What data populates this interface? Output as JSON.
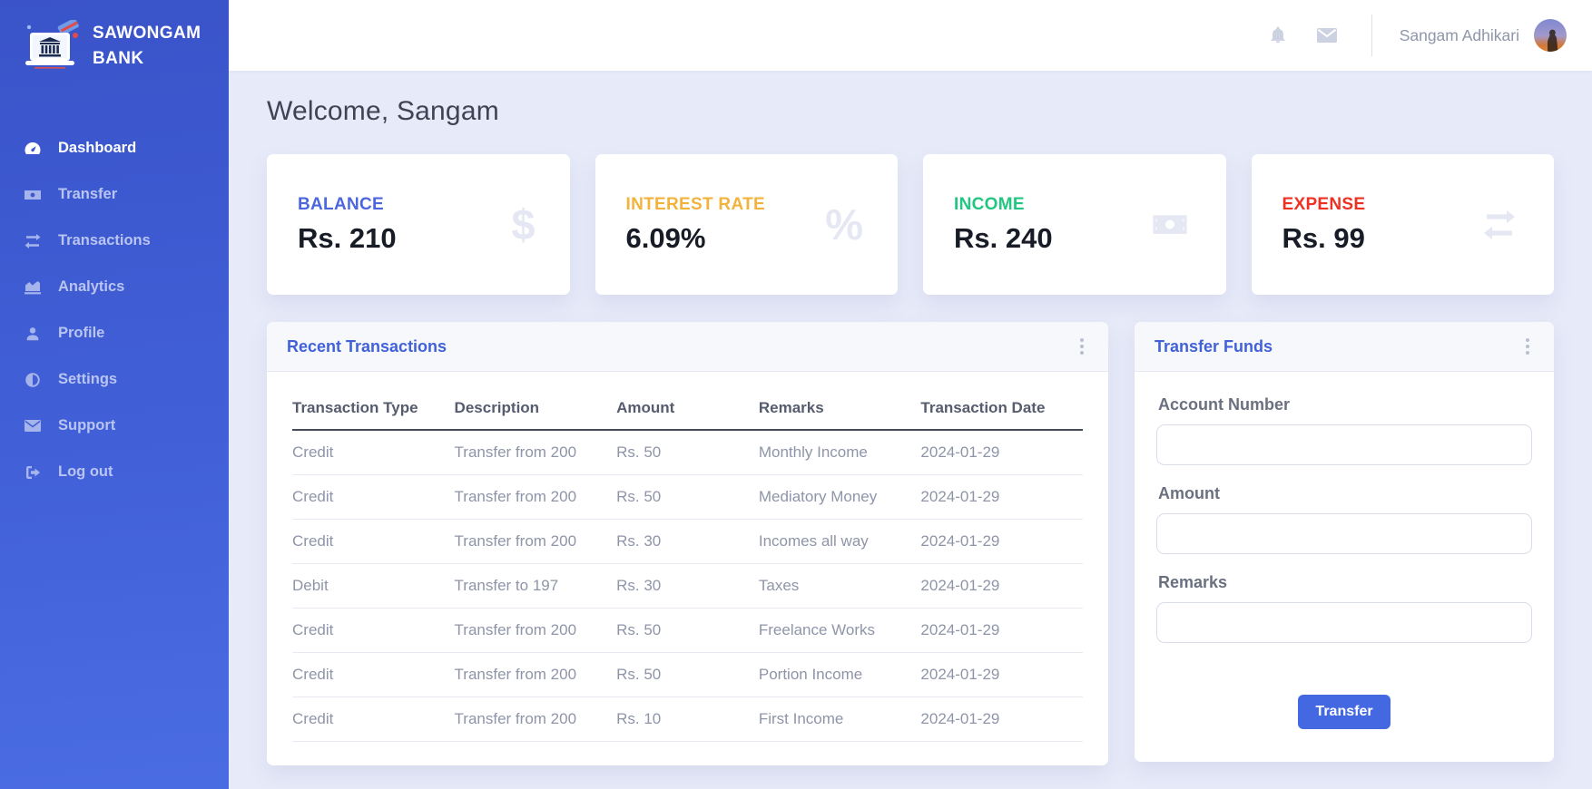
{
  "brand": {
    "line1": "SAWONGAM",
    "line2": "BANK"
  },
  "sidebar": {
    "items": [
      {
        "label": "Dashboard",
        "icon": "dashboard-icon",
        "active": true
      },
      {
        "label": "Transfer",
        "icon": "money-bill-icon",
        "active": false
      },
      {
        "label": "Transactions",
        "icon": "exchange-icon",
        "active": false
      },
      {
        "label": "Analytics",
        "icon": "chart-area-icon",
        "active": false
      },
      {
        "label": "Profile",
        "icon": "user-icon",
        "active": false
      },
      {
        "label": "Settings",
        "icon": "adjust-icon",
        "active": false
      },
      {
        "label": "Support",
        "icon": "envelope-icon",
        "active": false
      },
      {
        "label": "Log out",
        "icon": "sign-out-icon",
        "active": false
      }
    ]
  },
  "header": {
    "user_name": "Sangam Adhikari"
  },
  "main": {
    "welcome": "Welcome, Sangam",
    "stats": [
      {
        "label": "BALANCE",
        "value": "Rs. 210",
        "color": "#4c66dd",
        "icon": "dollar-icon"
      },
      {
        "label": "INTEREST RATE",
        "value": "6.09%",
        "color": "#f2b33d",
        "icon": "percent-icon"
      },
      {
        "label": "INCOME",
        "value": "Rs. 240",
        "color": "#21c780",
        "icon": "money-bill-icon"
      },
      {
        "label": "EXPENSE",
        "value": "Rs. 99",
        "color": "#ef3124",
        "icon": "exchange-icon"
      }
    ],
    "transactions": {
      "title": "Recent Transactions",
      "columns": [
        "Transaction Type",
        "Description",
        "Amount",
        "Remarks",
        "Transaction Date"
      ],
      "rows": [
        [
          "Credit",
          "Transfer from 200",
          "Rs. 50",
          "Monthly Income",
          "2024-01-29"
        ],
        [
          "Credit",
          "Transfer from 200",
          "Rs. 50",
          "Mediatory Money",
          "2024-01-29"
        ],
        [
          "Credit",
          "Transfer from 200",
          "Rs. 30",
          "Incomes all way",
          "2024-01-29"
        ],
        [
          "Debit",
          "Transfer to 197",
          "Rs. 30",
          "Taxes",
          "2024-01-29"
        ],
        [
          "Credit",
          "Transfer from 200",
          "Rs. 50",
          "Freelance Works",
          "2024-01-29"
        ],
        [
          "Credit",
          "Transfer from 200",
          "Rs. 50",
          "Portion Income",
          "2024-01-29"
        ],
        [
          "Credit",
          "Transfer from 200",
          "Rs. 10",
          "First Income",
          "2024-01-29"
        ]
      ]
    },
    "transfer": {
      "title": "Transfer Funds",
      "fields": [
        {
          "label": "Account Number",
          "value": "",
          "placeholder": ""
        },
        {
          "label": "Amount",
          "value": "",
          "placeholder": ""
        },
        {
          "label": "Remarks",
          "value": "",
          "placeholder": ""
        }
      ],
      "button_label": "Transfer"
    }
  },
  "theme": {
    "sidebar_gradient_top": "#3a53c9",
    "sidebar_gradient_bottom": "#4a6ce2",
    "accent_blue": "#4161d8",
    "background": "#e7eaf8",
    "button_blue": "#4468e2"
  }
}
